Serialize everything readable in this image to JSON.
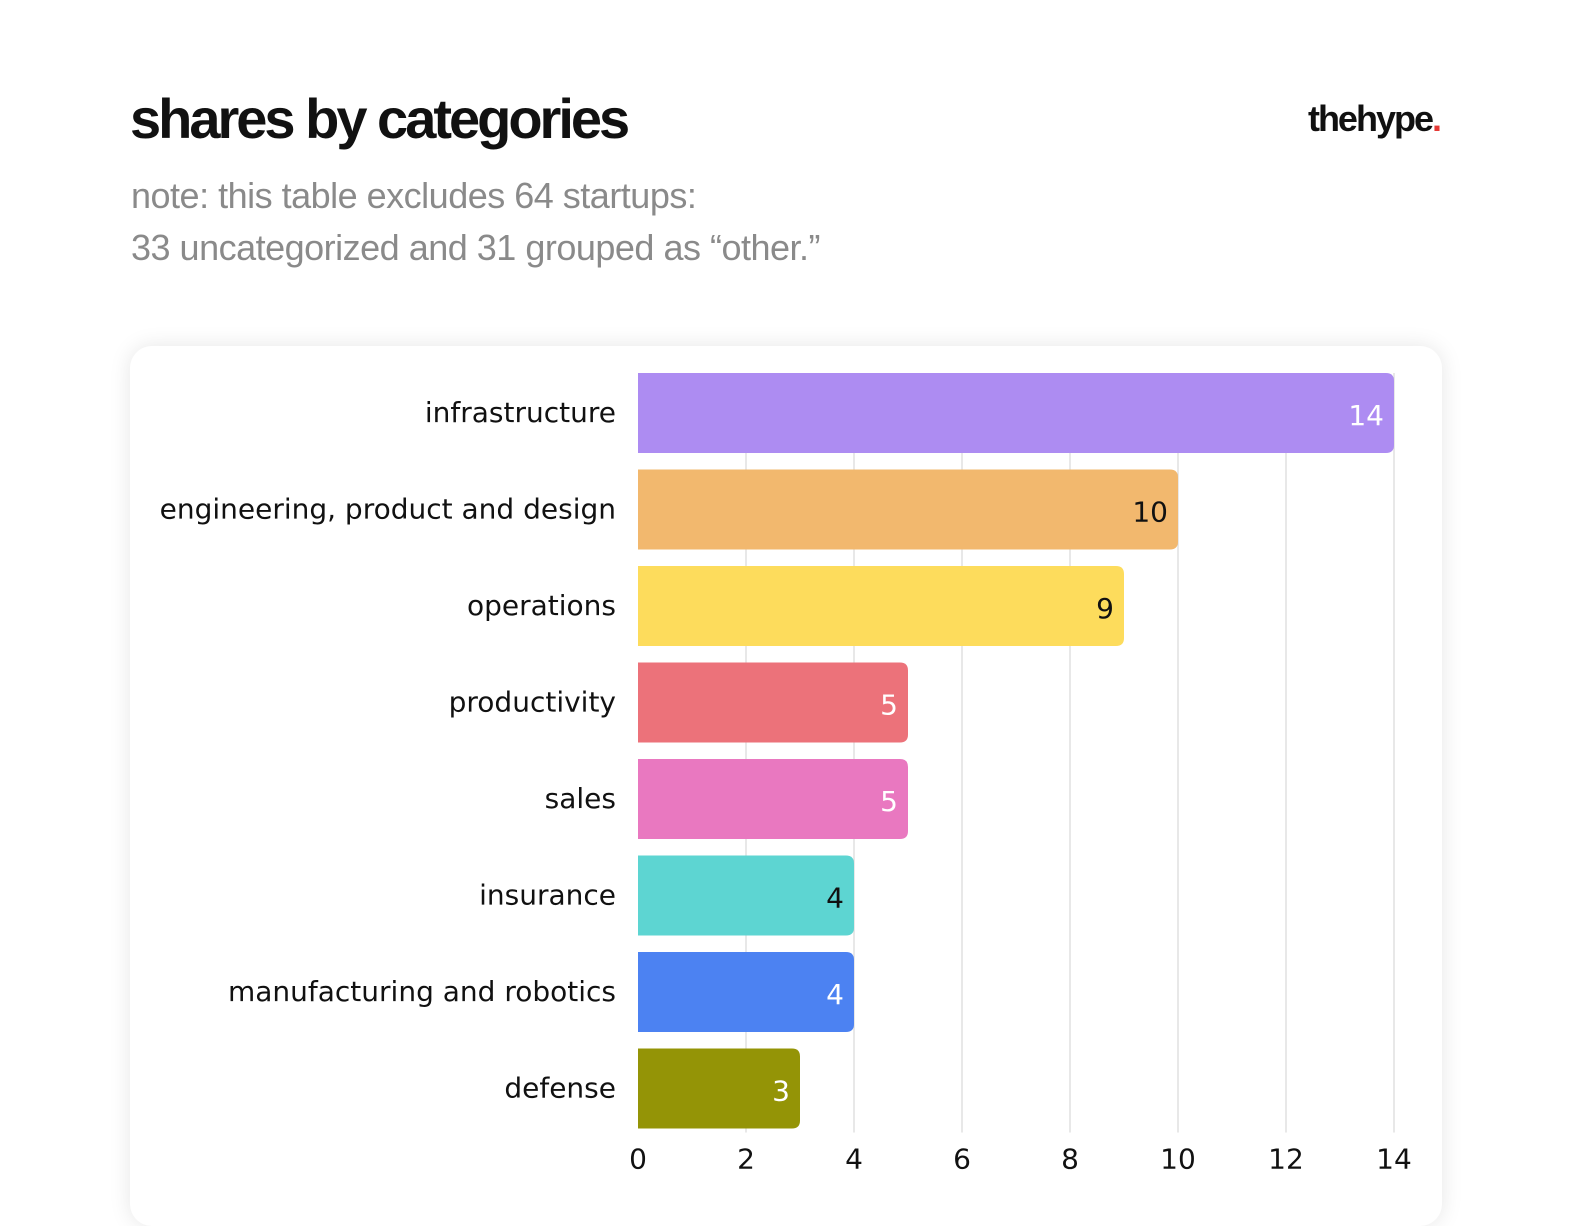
{
  "header": {
    "title": "shares by categories",
    "note_line1": "note: this table excludes 64 startups:",
    "note_line2": "33 uncategorized and 31 grouped as “other.”",
    "logo_text": "thehype",
    "logo_dot": "."
  },
  "colors": {
    "logo_dot": "#e53935",
    "grid": "#d0d0d0"
  },
  "chart_data": {
    "type": "bar",
    "orientation": "horizontal",
    "categories": [
      "infrastructure",
      "engineering, product and design",
      "operations",
      "productivity",
      "sales",
      "insurance",
      "manufacturing and robotics",
      "defense"
    ],
    "values": [
      14,
      10,
      9,
      5,
      5,
      4,
      4,
      3
    ],
    "data_labels": [
      "14",
      "10",
      "9",
      "5",
      "5",
      "4",
      "4",
      "3"
    ],
    "bar_colors": [
      "#ad8cf2",
      "#f2b86e",
      "#fddc5c",
      "#ec727a",
      "#e978c0",
      "#5dd5d2",
      "#4c82f2",
      "#949406"
    ],
    "label_colors": [
      "#ffffff",
      "#111111",
      "#111111",
      "#ffffff",
      "#ffffff",
      "#111111",
      "#ffffff",
      "#ffffff"
    ],
    "x_ticks": [
      "0",
      "2",
      "4",
      "6",
      "8",
      "10",
      "12",
      "14"
    ],
    "xlim": [
      0,
      14
    ],
    "grid": true
  }
}
